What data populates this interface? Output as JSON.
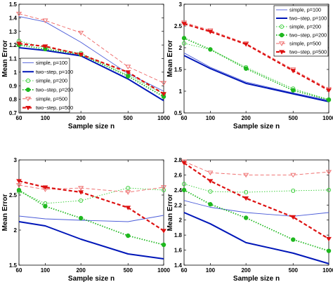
{
  "styles": {
    "simple-100": {
      "color": "#4a5bd8",
      "dash": "",
      "width": 0.9,
      "marker": "none"
    },
    "two-step-100": {
      "color": "#0016b8",
      "dash": "",
      "width": 2.0,
      "marker": "none"
    },
    "simple-200": {
      "color": "#33cc33",
      "dash": "1.5,2",
      "width": 0.9,
      "marker": "circle-open"
    },
    "two-step-200": {
      "color": "#1fb81f",
      "dash": "1.5,2",
      "width": 1.8,
      "marker": "circle-filled"
    },
    "simple-500": {
      "color": "#ee6666",
      "dash": "5,3",
      "width": 0.9,
      "marker": "triangle-open"
    },
    "two-step-500": {
      "color": "#dd1111",
      "dash": "5,3",
      "width": 2.2,
      "marker": "triangle-filled"
    }
  },
  "chart_data": [
    {
      "type": "line",
      "x": [
        60,
        100,
        200,
        500,
        1000
      ],
      "x_ticks": [
        "60",
        "100",
        "200",
        "500",
        "1000"
      ],
      "xlabel": "Sample size n",
      "ylabel": "Mean Error",
      "ylim": [
        0.7,
        1.5
      ],
      "y_ticks": [
        0.7,
        0.8,
        0.9,
        1.0,
        1.1,
        1.2,
        1.3,
        1.4,
        1.5
      ],
      "y_tick_labels": [
        "0.7",
        "0.8",
        "0.9",
        "1",
        "1.1",
        "1.2",
        "1.3",
        "1.4",
        "1.5"
      ],
      "grid": false,
      "legend": "lower-left",
      "series": [
        {
          "name": "simple, p=100",
          "style": "simple-100",
          "values": [
            1.41,
            1.37,
            1.22,
            0.99,
            0.86
          ]
        },
        {
          "name": "two−step, p=100",
          "style": "two-step-100",
          "values": [
            1.18,
            1.16,
            1.12,
            0.95,
            0.79
          ]
        },
        {
          "name": "simple, p=200",
          "style": "simple-200",
          "values": [
            1.23,
            1.18,
            1.14,
            0.98,
            0.84
          ]
        },
        {
          "name": "two−step, p=200",
          "style": "two-step-200",
          "values": [
            1.2,
            1.17,
            1.13,
            0.97,
            0.82
          ]
        },
        {
          "name": "simple, p=500",
          "style": "simple-500",
          "values": [
            1.43,
            1.38,
            1.29,
            1.04,
            0.92
          ]
        },
        {
          "name": "two−step, p=500",
          "style": "two-step-500",
          "values": [
            1.21,
            1.19,
            1.13,
            1.0,
            0.84
          ]
        }
      ]
    },
    {
      "type": "line",
      "x": [
        60,
        100,
        200,
        500,
        1000
      ],
      "x_ticks": [
        "60",
        "100",
        "200",
        "500",
        "1000"
      ],
      "xlabel": "Sample size n",
      "ylabel": "Mean Error",
      "ylim": [
        0.5,
        3.0
      ],
      "y_ticks": [
        0.5,
        1.0,
        1.5,
        2.0,
        2.5,
        3.0
      ],
      "y_tick_labels": [
        "0.5",
        "1",
        "1.5",
        "2",
        "2.5",
        "3"
      ],
      "grid": false,
      "legend": "top-right",
      "series": [
        {
          "name": "simple, p=100",
          "style": "simple-100",
          "values": [
            1.88,
            1.55,
            1.21,
            0.96,
            0.79
          ]
        },
        {
          "name": "two−step, p=100",
          "style": "two-step-100",
          "values": [
            1.82,
            1.52,
            1.18,
            0.94,
            0.76
          ]
        },
        {
          "name": "simple, p=200",
          "style": "simple-200",
          "values": [
            2.1,
            1.96,
            1.55,
            1.06,
            0.81
          ]
        },
        {
          "name": "two−step, p=200",
          "style": "two-step-200",
          "values": [
            2.22,
            1.96,
            1.52,
            1.02,
            0.8
          ]
        },
        {
          "name": "simple, p=500",
          "style": "simple-500",
          "values": [
            2.58,
            2.4,
            2.1,
            1.5,
            1.05
          ]
        },
        {
          "name": "two−step, p=500",
          "style": "two-step-500",
          "values": [
            2.55,
            2.37,
            2.08,
            1.47,
            1.02
          ]
        }
      ]
    },
    {
      "type": "line",
      "x": [
        60,
        100,
        200,
        500,
        1000
      ],
      "x_ticks": [
        "60",
        "100",
        "200",
        "500",
        "1000"
      ],
      "xlabel": "Sample size n",
      "ylabel": "Mean Error",
      "ylim": [
        1.5,
        3.0
      ],
      "y_ticks": [
        1.5,
        2.0,
        2.5,
        3.0
      ],
      "y_tick_labels": [
        "1.5",
        "2",
        "2.5",
        "3"
      ],
      "grid": false,
      "series": [
        {
          "style": "simple-100",
          "values": [
            2.2,
            2.16,
            2.14,
            2.12,
            2.21
          ]
        },
        {
          "style": "two-step-100",
          "values": [
            2.12,
            2.06,
            1.87,
            1.66,
            1.59
          ]
        },
        {
          "style": "simple-200",
          "values": [
            2.55,
            2.38,
            2.42,
            2.6,
            2.57
          ]
        },
        {
          "style": "two-step-200",
          "values": [
            2.57,
            2.34,
            2.17,
            1.92,
            1.79
          ]
        },
        {
          "style": "simple-500",
          "values": [
            2.64,
            2.58,
            2.6,
            2.54,
            2.61
          ]
        },
        {
          "style": "two-step-500",
          "values": [
            2.7,
            2.61,
            2.54,
            2.32,
            1.99
          ]
        }
      ]
    },
    {
      "type": "line",
      "x": [
        60,
        100,
        200,
        500,
        1000
      ],
      "x_ticks": [
        "60",
        "100",
        "200",
        "500",
        "1000"
      ],
      "xlabel": "Sample size n",
      "ylabel": "Mean Error",
      "ylim": [
        1.4,
        2.8
      ],
      "y_ticks": [
        1.4,
        1.6,
        1.8,
        2.0,
        2.2,
        2.4,
        2.6,
        2.8
      ],
      "y_tick_labels": [
        "1.4",
        "1.6",
        "1.8",
        "2",
        "2.2",
        "2.4",
        "2.6",
        "2.8"
      ],
      "grid": false,
      "series": [
        {
          "style": "simple-100",
          "values": [
            2.26,
            2.17,
            2.1,
            2.05,
            2.1
          ]
        },
        {
          "style": "two-step-100",
          "values": [
            2.1,
            1.95,
            1.7,
            1.56,
            1.42
          ]
        },
        {
          "style": "simple-200",
          "values": [
            2.48,
            2.38,
            2.37,
            2.39,
            2.4
          ]
        },
        {
          "style": "two-step-200",
          "values": [
            2.4,
            2.21,
            2.03,
            1.74,
            1.59
          ]
        },
        {
          "style": "simple-500",
          "values": [
            2.78,
            2.63,
            2.6,
            2.6,
            2.64
          ]
        },
        {
          "style": "two-step-500",
          "values": [
            2.76,
            2.52,
            2.29,
            2.04,
            1.75
          ]
        }
      ]
    }
  ]
}
